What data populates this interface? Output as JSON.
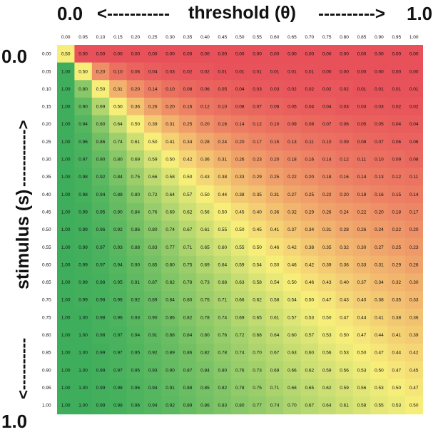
{
  "chart_data": {
    "type": "heatmap",
    "title": "",
    "xlabel": "threshold (θ)",
    "ylabel": "stimulus (s)",
    "x_axis_text": {
      "start": "0.0",
      "arrow_left": "<-----------",
      "label": "threshold (θ)",
      "arrow_right": "---------->",
      "end": "1.0"
    },
    "y_axis_text": {
      "start": "0.0",
      "arrow_top": "<----------",
      "label": "stimulus (s)",
      "arrow_bottom": "----------->",
      "end": "1.0"
    },
    "x_ticks": [
      "0.00",
      "0.05",
      "0.10",
      "0.15",
      "0.20",
      "0.25",
      "0.30",
      "0.35",
      "0.40",
      "0.45",
      "0.50",
      "0.55",
      "0.60",
      "0.65",
      "0.70",
      "0.75",
      "0.80",
      "0.85",
      "0.90",
      "0.95",
      "1.00"
    ],
    "y_ticks": [
      "0.00",
      "0.05",
      "0.10",
      "0.15",
      "0.20",
      "0.25",
      "0.30",
      "0.35",
      "0.40",
      "0.45",
      "0.50",
      "0.55",
      "0.60",
      "0.65",
      "0.70",
      "0.75",
      "0.80",
      "0.85",
      "0.90",
      "0.95",
      "1.00"
    ],
    "color_scale": {
      "low": "#e8505a",
      "mid": "#f7ee7a",
      "high": "#3fae5c"
    },
    "values": [
      [
        "0.50",
        "0.00",
        "0.00",
        "0.00",
        "0.00",
        "0.00",
        "0.00",
        "0.00",
        "0.00",
        "0.00",
        "0.00",
        "0.00",
        "0.00",
        "0.00",
        "0.00",
        "0.00",
        "0.00",
        "0.00",
        "0.00",
        "0.00",
        "0.00"
      ],
      [
        "1.00",
        "0.50",
        "0.20",
        "0.10",
        "0.06",
        "0.04",
        "0.03",
        "0.02",
        "0.02",
        "0.01",
        "0.01",
        "0.01",
        "0.01",
        "0.01",
        "0.01",
        "0.00",
        "0.00",
        "0.00",
        "0.00",
        "0.00",
        "0.00"
      ],
      [
        "1.00",
        "0.80",
        "0.50",
        "0.31",
        "0.20",
        "0.14",
        "0.10",
        "0.08",
        "0.06",
        "0.05",
        "0.04",
        "0.03",
        "0.03",
        "0.02",
        "0.02",
        "0.02",
        "0.02",
        "0.01",
        "0.01",
        "0.01",
        "0.01"
      ],
      [
        "1.00",
        "0.90",
        "0.69",
        "0.50",
        "0.36",
        "0.26",
        "0.20",
        "0.16",
        "0.12",
        "0.10",
        "0.08",
        "0.07",
        "0.06",
        "0.05",
        "0.04",
        "0.04",
        "0.03",
        "0.03",
        "0.03",
        "0.02",
        "0.02"
      ],
      [
        "1.00",
        "0.94",
        "0.80",
        "0.64",
        "0.50",
        "0.39",
        "0.31",
        "0.25",
        "0.20",
        "0.16",
        "0.14",
        "0.12",
        "0.10",
        "0.09",
        "0.08",
        "0.07",
        "0.06",
        "0.05",
        "0.05",
        "0.04",
        "0.04"
      ],
      [
        "1.00",
        "0.96",
        "0.86",
        "0.74",
        "0.61",
        "0.50",
        "0.41",
        "0.34",
        "0.28",
        "0.24",
        "0.20",
        "0.17",
        "0.15",
        "0.13",
        "0.11",
        "0.10",
        "0.09",
        "0.08",
        "0.07",
        "0.06",
        "0.06"
      ],
      [
        "1.00",
        "0.97",
        "0.90",
        "0.80",
        "0.69",
        "0.59",
        "0.50",
        "0.42",
        "0.36",
        "0.31",
        "0.26",
        "0.23",
        "0.20",
        "0.18",
        "0.16",
        "0.14",
        "0.12",
        "0.11",
        "0.10",
        "0.09",
        "0.08"
      ],
      [
        "1.00",
        "0.98",
        "0.92",
        "0.84",
        "0.75",
        "0.66",
        "0.58",
        "0.50",
        "0.43",
        "0.38",
        "0.33",
        "0.29",
        "0.25",
        "0.22",
        "0.20",
        "0.18",
        "0.16",
        "0.14",
        "0.13",
        "0.12",
        "0.11"
      ],
      [
        "1.00",
        "0.98",
        "0.94",
        "0.88",
        "0.80",
        "0.72",
        "0.64",
        "0.57",
        "0.50",
        "0.44",
        "0.38",
        "0.35",
        "0.31",
        "0.27",
        "0.25",
        "0.22",
        "0.20",
        "0.18",
        "0.16",
        "0.15",
        "0.14"
      ],
      [
        "1.00",
        "0.99",
        "0.95",
        "0.90",
        "0.84",
        "0.76",
        "0.69",
        "0.62",
        "0.56",
        "0.50",
        "0.45",
        "0.40",
        "0.36",
        "0.32",
        "0.29",
        "0.26",
        "0.24",
        "0.22",
        "0.20",
        "0.18",
        "0.17"
      ],
      [
        "1.00",
        "0.99",
        "0.96",
        "0.92",
        "0.86",
        "0.80",
        "0.74",
        "0.67",
        "0.61",
        "0.55",
        "0.50",
        "0.45",
        "0.41",
        "0.37",
        "0.34",
        "0.31",
        "0.28",
        "0.26",
        "0.24",
        "0.22",
        "0.20"
      ],
      [
        "1.00",
        "0.99",
        "0.97",
        "0.93",
        "0.88",
        "0.83",
        "0.77",
        "0.71",
        "0.65",
        "0.60",
        "0.55",
        "0.50",
        "0.46",
        "0.42",
        "0.38",
        "0.35",
        "0.32",
        "0.30",
        "0.27",
        "0.25",
        "0.23"
      ],
      [
        "1.00",
        "0.99",
        "0.97",
        "0.94",
        "0.90",
        "0.85",
        "0.80",
        "0.75",
        "0.69",
        "0.64",
        "0.59",
        "0.54",
        "0.50",
        "0.46",
        "0.42",
        "0.39",
        "0.36",
        "0.33",
        "0.31",
        "0.29",
        "0.26"
      ],
      [
        "1.00",
        "0.99",
        "0.98",
        "0.95",
        "0.91",
        "0.87",
        "0.82",
        "0.78",
        "0.73",
        "0.68",
        "0.63",
        "0.58",
        "0.54",
        "0.50",
        "0.46",
        "0.43",
        "0.40",
        "0.37",
        "0.34",
        "0.32",
        "0.30"
      ],
      [
        "1.00",
        "0.99",
        "0.98",
        "0.96",
        "0.92",
        "0.89",
        "0.84",
        "0.80",
        "0.75",
        "0.71",
        "0.66",
        "0.62",
        "0.58",
        "0.54",
        "0.50",
        "0.47",
        "0.43",
        "0.40",
        "0.38",
        "0.35",
        "0.33"
      ],
      [
        "1.00",
        "1.00",
        "0.98",
        "0.96",
        "0.93",
        "0.90",
        "0.86",
        "0.82",
        "0.78",
        "0.74",
        "0.69",
        "0.65",
        "0.61",
        "0.57",
        "0.53",
        "0.50",
        "0.47",
        "0.44",
        "0.41",
        "0.38",
        "0.36"
      ],
      [
        "1.00",
        "1.00",
        "0.98",
        "0.97",
        "0.94",
        "0.91",
        "0.88",
        "0.84",
        "0.80",
        "0.76",
        "0.72",
        "0.68",
        "0.64",
        "0.60",
        "0.57",
        "0.53",
        "0.50",
        "0.47",
        "0.44",
        "0.41",
        "0.39"
      ],
      [
        "1.00",
        "1.00",
        "0.99",
        "0.97",
        "0.95",
        "0.92",
        "0.89",
        "0.86",
        "0.82",
        "0.78",
        "0.74",
        "0.70",
        "0.67",
        "0.63",
        "0.60",
        "0.56",
        "0.53",
        "0.50",
        "0.47",
        "0.44",
        "0.42"
      ],
      [
        "1.00",
        "1.00",
        "0.99",
        "0.97",
        "0.95",
        "0.93",
        "0.90",
        "0.87",
        "0.84",
        "0.80",
        "0.76",
        "0.73",
        "0.69",
        "0.66",
        "0.62",
        "0.59",
        "0.56",
        "0.53",
        "0.50",
        "0.47",
        "0.45"
      ],
      [
        "1.00",
        "1.00",
        "0.99",
        "0.98",
        "0.96",
        "0.94",
        "0.91",
        "0.88",
        "0.85",
        "0.82",
        "0.78",
        "0.75",
        "0.71",
        "0.68",
        "0.65",
        "0.62",
        "0.59",
        "0.56",
        "0.53",
        "0.50",
        "0.47"
      ],
      [
        "1.00",
        "1.00",
        "0.99",
        "0.98",
        "0.96",
        "0.94",
        "0.92",
        "0.89",
        "0.86",
        "0.83",
        "0.80",
        "0.77",
        "0.74",
        "0.70",
        "0.67",
        "0.64",
        "0.61",
        "0.58",
        "0.55",
        "0.53",
        "0.50"
      ]
    ]
  }
}
